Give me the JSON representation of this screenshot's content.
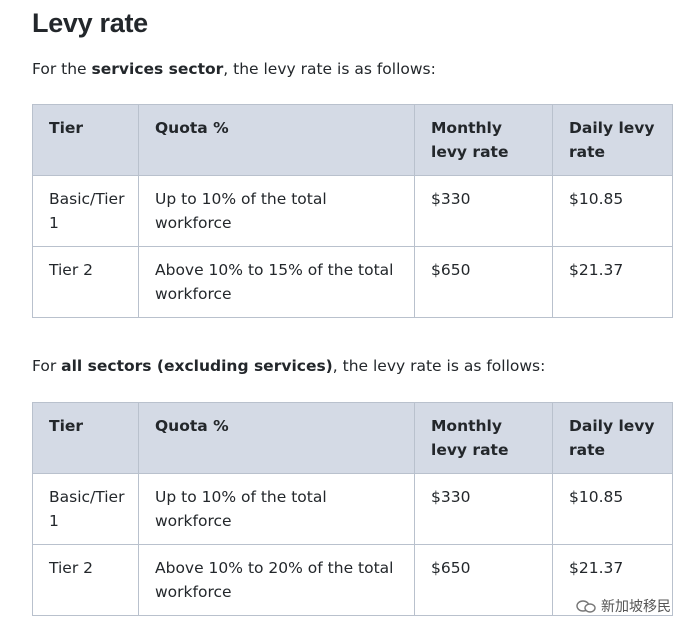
{
  "heading": "Levy rate",
  "sections": [
    {
      "intro": [
        "For the ",
        "services sector",
        ", the levy rate is as follows:"
      ],
      "table": {
        "header": [
          "Tier",
          "Quota %",
          "Monthly levy rate",
          "Daily levy rate"
        ],
        "rows": [
          [
            "Basic/Tier 1",
            "Up to 10% of the total workforce",
            "$330",
            "$10.85"
          ],
          [
            "Tier 2",
            "Above 10% to 15% of the total workforce",
            "$650",
            "$21.37"
          ]
        ]
      }
    },
    {
      "intro": [
        "For ",
        "all sectors (excluding services)",
        ", the levy rate is as follows:"
      ],
      "table": {
        "header": [
          "Tier",
          "Quota %",
          "Monthly levy rate",
          "Daily levy rate"
        ],
        "rows": [
          [
            "Basic/Tier 1",
            "Up to 10% of the total workforce",
            "$330",
            "$10.85"
          ],
          [
            "Tier 2",
            "Above 10% to 20% of the total workforce",
            "$650",
            "$21.37"
          ]
        ]
      }
    }
  ],
  "watermark": "新加坡移民"
}
